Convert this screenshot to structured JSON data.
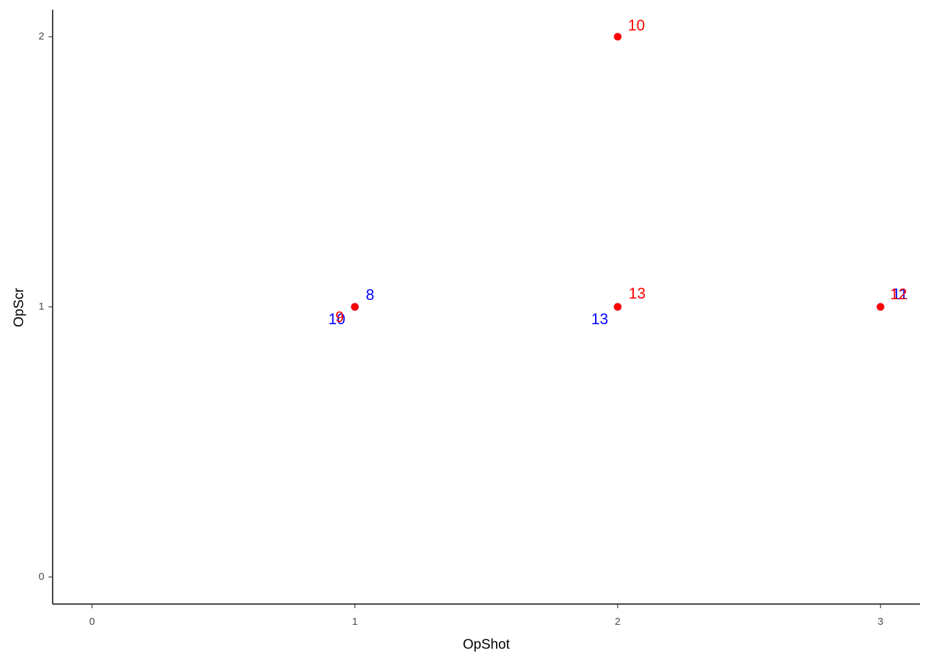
{
  "chart_data": {
    "type": "scatter",
    "x_label": "OpShot",
    "y_label": "OpScr",
    "xlim": [
      -0.15,
      3.15
    ],
    "ylim": [
      -0.1,
      2.1
    ],
    "xticks": [
      0,
      1,
      2,
      3
    ],
    "yticks": [
      0,
      1,
      2
    ],
    "series": [
      {
        "color": "#0000ff",
        "x": [
          1,
          1,
          2,
          3
        ],
        "y": [
          1,
          1,
          1,
          1
        ],
        "labels": [
          8,
          10,
          13,
          11
        ]
      },
      {
        "color": "#ff0000",
        "x": [
          2,
          2,
          1,
          3
        ],
        "y": [
          2,
          1,
          1,
          1
        ],
        "labels": [
          10,
          13,
          9,
          12
        ]
      }
    ]
  }
}
